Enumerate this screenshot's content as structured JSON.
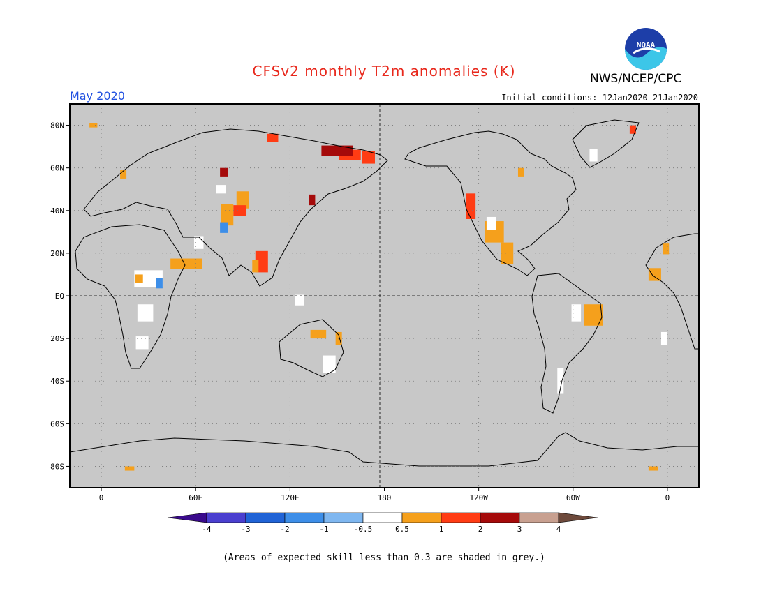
{
  "title": "CFSv2 monthly T2m anomalies (K)",
  "agency": "NWS/NCEP/CPC",
  "logo_text": "NOAA",
  "target_month": "May 2020",
  "initial_conditions": "Initial conditions: 12Jan2020-21Jan2020",
  "footnote": "(Areas of expected skill less than 0.3 are shaded in grey.)",
  "map": {
    "lon_range": [
      -20,
      380
    ],
    "lat_range": [
      -90,
      90
    ],
    "lon_ticks": [
      {
        "label": "0",
        "lon": 0
      },
      {
        "label": "60E",
        "lon": 60
      },
      {
        "label": "120E",
        "lon": 120
      },
      {
        "label": "180",
        "lon": 180
      },
      {
        "label": "120W",
        "lon": 240
      },
      {
        "label": "60W",
        "lon": 300
      },
      {
        "label": "0",
        "lon": 360
      }
    ],
    "lat_ticks": [
      {
        "label": "80N",
        "lat": 80
      },
      {
        "label": "60N",
        "lat": 60
      },
      {
        "label": "40N",
        "lat": 40
      },
      {
        "label": "20N",
        "lat": 20
      },
      {
        "label": "EQ",
        "lat": 0
      },
      {
        "label": "20S",
        "lat": -20
      },
      {
        "label": "40S",
        "lat": -40
      },
      {
        "label": "60S",
        "lat": -60
      },
      {
        "label": "80S",
        "lat": -80
      }
    ],
    "dashed_lines": [
      "equator",
      "dateline"
    ],
    "background_color": "#c8c8c8"
  },
  "colorbar": {
    "labels": [
      "-4",
      "-3",
      "-2",
      "-1",
      "-0.5",
      "0.5",
      "1",
      "2",
      "3",
      "4"
    ],
    "colors": [
      "#3a0a8c",
      "#4a3fcf",
      "#2063d6",
      "#3d8ee8",
      "#7fb7f0",
      "#ffffff",
      "#f5a01c",
      "#ff3c14",
      "#a50a0a",
      "#c8a090",
      "#6e4a3c"
    ]
  },
  "anomaly_regions": [
    {
      "category": "warm2",
      "color": "#ff3c14",
      "lon": 158,
      "lat": 66,
      "w": 14,
      "h": 5
    },
    {
      "category": "warm3",
      "color": "#a50a0a",
      "lon": 150,
      "lat": 68,
      "w": 20,
      "h": 5
    },
    {
      "category": "warm2",
      "color": "#ff3c14",
      "lon": 170,
      "lat": 65,
      "w": 8,
      "h": 6
    },
    {
      "category": "warm3",
      "color": "#a50a0a",
      "lon": 78,
      "lat": 58,
      "w": 5,
      "h": 4
    },
    {
      "category": "warm2",
      "color": "#ff3c14",
      "lon": 109,
      "lat": 74,
      "w": 7,
      "h": 4
    },
    {
      "category": "warm3",
      "color": "#a50a0a",
      "lon": 134,
      "lat": 45,
      "w": 4,
      "h": 5
    },
    {
      "category": "warm1",
      "color": "#f5a01c",
      "lon": 90,
      "lat": 45,
      "w": 8,
      "h": 8
    },
    {
      "category": "warm2",
      "color": "#ff3c14",
      "lon": 88,
      "lat": 40,
      "w": 8,
      "h": 5
    },
    {
      "category": "warm1",
      "color": "#f5a01c",
      "lon": 80,
      "lat": 38,
      "w": 8,
      "h": 10
    },
    {
      "category": "neutral",
      "color": "#ffffff",
      "lon": 76,
      "lat": 50,
      "w": 6,
      "h": 4
    },
    {
      "category": "cold1",
      "color": "#3d8ee8",
      "lon": 78,
      "lat": 32,
      "w": 5,
      "h": 5
    },
    {
      "category": "warm2",
      "color": "#ff3c14",
      "lon": 102,
      "lat": 16,
      "w": 8,
      "h": 10
    },
    {
      "category": "warm1",
      "color": "#f5a01c",
      "lon": 98,
      "lat": 14,
      "w": 4,
      "h": 6
    },
    {
      "category": "warm1",
      "color": "#f5a01c",
      "lon": 54,
      "lat": 15,
      "w": 20,
      "h": 5
    },
    {
      "category": "neutral",
      "color": "#ffffff",
      "lon": 62,
      "lat": 25,
      "w": 6,
      "h": 6
    },
    {
      "category": "neutral",
      "color": "#ffffff",
      "lon": 30,
      "lat": 8,
      "w": 18,
      "h": 8
    },
    {
      "category": "cold1",
      "color": "#3d8ee8",
      "lon": 37,
      "lat": 6,
      "w": 4,
      "h": 5
    },
    {
      "category": "warm1",
      "color": "#f5a01c",
      "lon": 24,
      "lat": 8,
      "w": 5,
      "h": 4
    },
    {
      "category": "neutral",
      "color": "#ffffff",
      "lon": 28,
      "lat": -8,
      "w": 10,
      "h": 8
    },
    {
      "category": "neutral",
      "color": "#ffffff",
      "lon": 26,
      "lat": -22,
      "w": 8,
      "h": 6
    },
    {
      "category": "warm1",
      "color": "#f5a01c",
      "lon": 138,
      "lat": -18,
      "w": 10,
      "h": 4
    },
    {
      "category": "warm1",
      "color": "#f5a01c",
      "lon": 151,
      "lat": -20,
      "w": 4,
      "h": 6
    },
    {
      "category": "neutral",
      "color": "#ffffff",
      "lon": 145,
      "lat": -32,
      "w": 8,
      "h": 8
    },
    {
      "category": "neutral",
      "color": "#ffffff",
      "lon": 126,
      "lat": -2,
      "w": 6,
      "h": 5
    },
    {
      "category": "warm2",
      "color": "#ff3c14",
      "lon": 235,
      "lat": 42,
      "w": 6,
      "h": 12
    },
    {
      "category": "warm1",
      "color": "#f5a01c",
      "lon": 250,
      "lat": 30,
      "w": 12,
      "h": 10
    },
    {
      "category": "warm1",
      "color": "#f5a01c",
      "lon": 258,
      "lat": 20,
      "w": 8,
      "h": 10
    },
    {
      "category": "neutral",
      "color": "#ffffff",
      "lon": 248,
      "lat": 34,
      "w": 6,
      "h": 6
    },
    {
      "category": "warm1",
      "color": "#f5a01c",
      "lon": 267,
      "lat": 58,
      "w": 4,
      "h": 4
    },
    {
      "category": "neutral",
      "color": "#ffffff",
      "lon": 313,
      "lat": 66,
      "w": 5,
      "h": 6
    },
    {
      "category": "warm2",
      "color": "#ff3c14",
      "lon": 338,
      "lat": 78,
      "w": 4,
      "h": 4
    },
    {
      "category": "warm1",
      "color": "#f5a01c",
      "lon": 313,
      "lat": -9,
      "w": 12,
      "h": 10
    },
    {
      "category": "neutral",
      "color": "#ffffff",
      "lon": 302,
      "lat": -8,
      "w": 6,
      "h": 8
    },
    {
      "category": "neutral",
      "color": "#ffffff",
      "lon": 292,
      "lat": -40,
      "w": 4,
      "h": 12
    },
    {
      "category": "warm1",
      "color": "#f5a01c",
      "lon": 352,
      "lat": 10,
      "w": 8,
      "h": 6
    },
    {
      "category": "neutral",
      "color": "#ffffff",
      "lon": 358,
      "lat": -20,
      "w": 4,
      "h": 6
    },
    {
      "category": "warm1",
      "color": "#f5a01c",
      "lon": 359,
      "lat": 22,
      "w": 4,
      "h": 5
    },
    {
      "category": "warm1",
      "color": "#f5a01c",
      "lon": 18,
      "lat": -81,
      "w": 6,
      "h": 2
    },
    {
      "category": "warm1",
      "color": "#f5a01c",
      "lon": 351,
      "lat": -81,
      "w": 6,
      "h": 2
    },
    {
      "category": "warm1",
      "color": "#f5a01c",
      "lon": -5,
      "lat": 80,
      "w": 5,
      "h": 2
    },
    {
      "category": "warm1",
      "color": "#f5a01c",
      "lon": 14,
      "lat": 57,
      "w": 4,
      "h": 4
    }
  ]
}
